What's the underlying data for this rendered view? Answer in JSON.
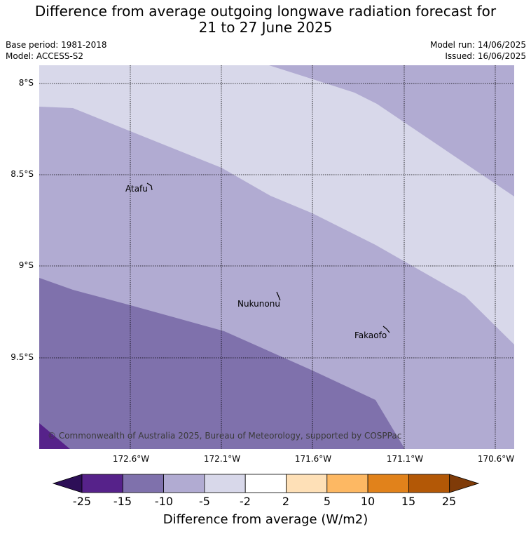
{
  "title_line1": "Difference from average outgoing longwave radiation forecast for",
  "title_line2": "21 to 27 June 2025",
  "base_period": "Base period: 1981-2018",
  "model": "Model: ACCESS-S2",
  "model_run": "Model run: 14/06/2025",
  "issued": "Issued: 16/06/2025",
  "lat_labels": [
    "8°S",
    "8.5°S",
    "9°S",
    "9.5°S"
  ],
  "lon_labels": [
    "172.6°W",
    "172.1°W",
    "171.6°W",
    "171.1°W",
    "170.6°W"
  ],
  "places": {
    "atafu": "Atafu",
    "nukunonu": "Nukunonu",
    "fakaofo": "Fakaofo"
  },
  "copyright": "© Commonwealth of Australia 2025, Bureau of Meteorology, supported by COSPPac",
  "colorbar": {
    "ticks": [
      "-25",
      "-15",
      "-10",
      "-5",
      "-2",
      "2",
      "5",
      "10",
      "15",
      "25"
    ],
    "colors": [
      "#2d0f57",
      "#56228a",
      "#7f71ac",
      "#b1abd2",
      "#d8d8ea",
      "#ffffff",
      "#fee0b7",
      "#fdb863",
      "#e1821b",
      "#b35806",
      "#7f3b08"
    ],
    "label": "Difference from average (W/m2)"
  }
}
